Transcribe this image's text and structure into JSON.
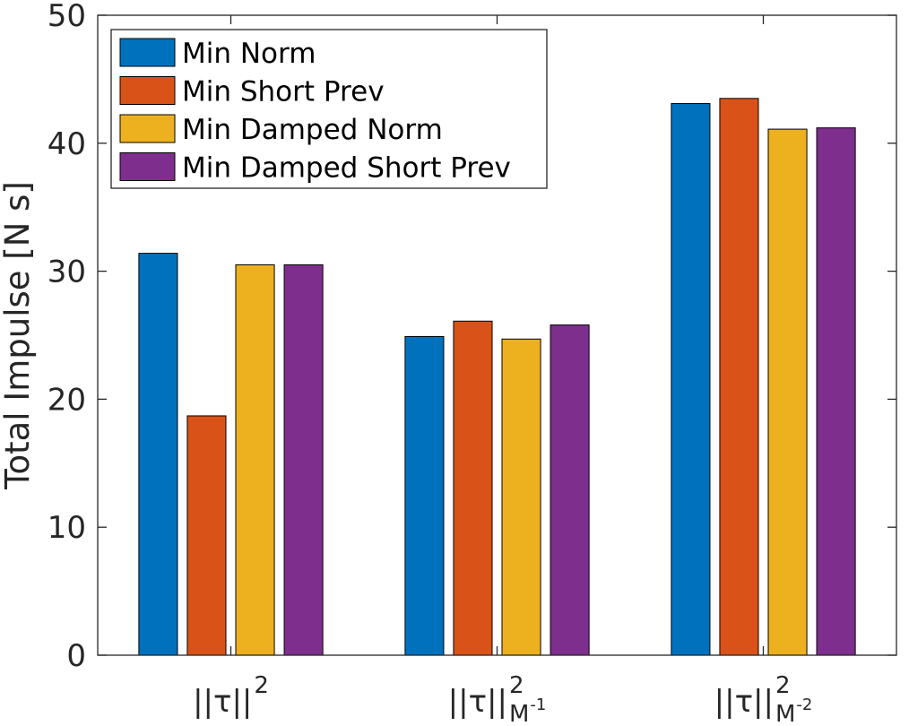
{
  "chart_data": {
    "type": "bar",
    "ylabel": "Total Impulse [N s]",
    "ylim": [
      0,
      50
    ],
    "yticks": [
      0,
      10,
      20,
      30,
      40,
      50
    ],
    "grid": false,
    "legend_position": "top-left",
    "categories": [
      {
        "base": "||τ||",
        "sup": "2",
        "sub": "",
        "subsup": ""
      },
      {
        "base": "||τ||",
        "sup": "2",
        "sub": "M",
        "subsup": "-1"
      },
      {
        "base": "||τ||",
        "sup": "2",
        "sub": "M",
        "subsup": "-2"
      }
    ],
    "series": [
      {
        "name": "Min Norm",
        "color": "#0072BD",
        "values": [
          31.4,
          24.9,
          43.1
        ]
      },
      {
        "name": "Min Short Prev",
        "color": "#D95319",
        "values": [
          18.7,
          26.1,
          43.5
        ]
      },
      {
        "name": "Min Damped Norm",
        "color": "#EDB120",
        "values": [
          30.5,
          24.7,
          41.1
        ]
      },
      {
        "name": "Min Damped Short Prev",
        "color": "#7E2F8E",
        "values": [
          30.5,
          25.8,
          41.2
        ]
      }
    ]
  }
}
